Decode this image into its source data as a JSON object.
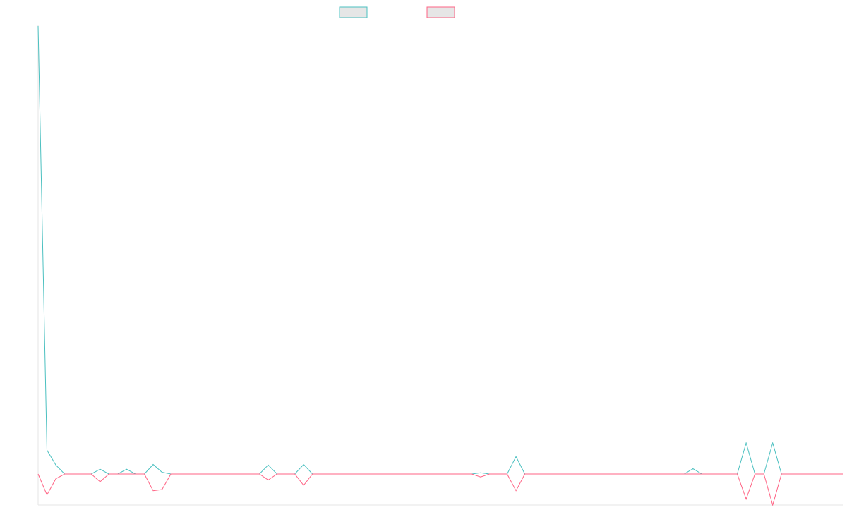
{
  "chart_data": {
    "type": "line",
    "title": "",
    "xlabel": "",
    "ylabel": "",
    "grid": false,
    "legend_position": "top-center",
    "x": [
      1,
      2,
      3,
      4,
      5,
      6,
      7,
      8,
      9,
      10,
      11,
      12,
      13,
      14,
      15,
      16,
      17,
      18,
      19,
      20,
      21,
      22,
      23,
      24,
      25,
      26,
      27,
      28,
      29,
      30,
      31,
      32,
      33,
      34,
      35,
      36,
      37,
      38,
      39,
      40,
      41,
      42,
      43,
      44,
      45,
      46,
      47,
      48,
      49,
      50,
      51,
      52,
      53,
      54,
      55,
      56,
      57,
      58,
      59,
      60,
      61,
      62,
      63,
      64,
      65,
      66,
      67,
      68,
      69,
      70,
      71,
      72,
      73,
      74,
      75,
      76,
      77,
      78,
      79,
      80,
      81,
      82,
      83,
      84,
      85,
      86,
      87,
      88,
      89,
      90,
      91,
      92
    ],
    "ylim": [
      -5,
      75
    ],
    "series": [
      {
        "color": "#4bc0c0",
        "values": [
          75,
          4,
          1.5,
          0,
          0,
          0,
          0,
          0.8,
          0,
          0,
          0.8,
          0,
          0,
          1.6,
          0.3,
          0,
          0,
          0,
          0,
          0,
          0,
          0,
          0,
          0,
          0,
          0,
          1.5,
          0,
          0,
          0,
          1.6,
          0,
          0,
          0,
          0,
          0,
          0,
          0,
          0,
          0,
          0,
          0,
          0,
          0,
          0,
          0,
          0,
          0,
          0,
          0,
          0.2,
          0,
          0,
          0,
          2.9,
          0,
          0,
          0,
          0,
          0,
          0,
          0,
          0,
          0,
          0,
          0,
          0,
          0,
          0,
          0,
          0,
          0,
          0,
          0,
          0.9,
          0,
          0,
          0,
          0,
          0,
          5.2,
          0,
          0,
          5.2,
          0,
          0,
          0,
          0,
          0,
          0,
          0,
          0
        ]
      },
      {
        "color": "#ff6384",
        "values": [
          0,
          -3.5,
          -0.8,
          0,
          0,
          0,
          0,
          -1.3,
          0,
          0,
          0,
          0,
          0,
          -2.8,
          -2.6,
          0,
          0,
          0,
          0,
          0,
          0,
          0,
          0,
          0,
          0,
          0,
          -1,
          0,
          0,
          0,
          -1.9,
          0,
          0,
          0,
          0,
          0,
          0,
          0,
          0,
          0,
          0,
          0,
          0,
          0,
          0,
          0,
          0,
          0,
          0,
          0,
          -0.5,
          0,
          0,
          0,
          -2.8,
          0,
          0,
          0,
          0,
          0,
          0,
          0,
          0,
          0,
          0,
          0,
          0,
          0,
          0,
          0,
          0,
          0,
          0,
          0,
          0,
          0,
          0,
          0,
          0,
          0,
          -4.2,
          0,
          0,
          -5.2,
          0,
          0,
          0,
          0,
          0,
          0,
          0,
          0
        ]
      }
    ]
  }
}
